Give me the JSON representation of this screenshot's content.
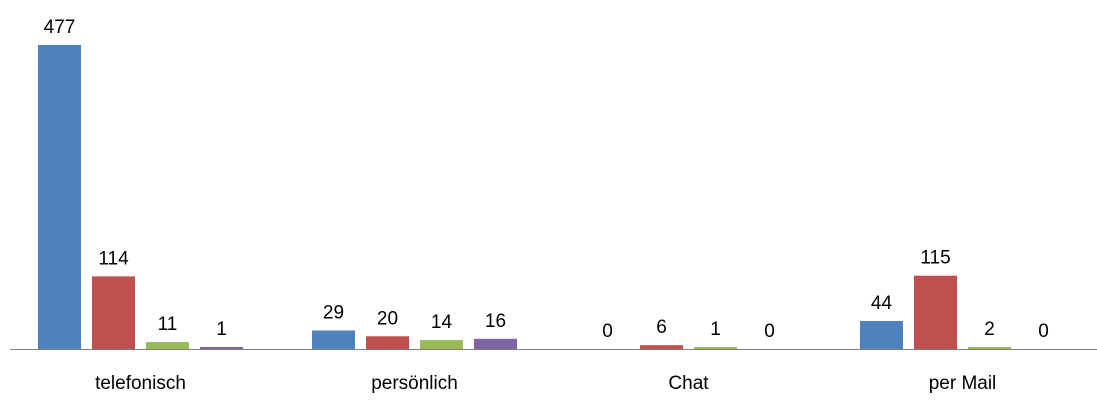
{
  "chart_data": {
    "type": "bar",
    "categories": [
      "telefonisch",
      "persönlich",
      "Chat",
      "per Mail"
    ],
    "series": [
      {
        "values": [
          477,
          29,
          0,
          44
        ],
        "color": "#4F81BD"
      },
      {
        "values": [
          114,
          20,
          6,
          115
        ],
        "color": "#C0504D"
      },
      {
        "values": [
          11,
          14,
          1,
          2
        ],
        "color": "#9BBB59"
      },
      {
        "values": [
          1,
          16,
          0,
          0
        ],
        "color": "#8064A2"
      }
    ],
    "ylim": [
      0,
      477
    ],
    "grid": false,
    "legend": "none"
  }
}
